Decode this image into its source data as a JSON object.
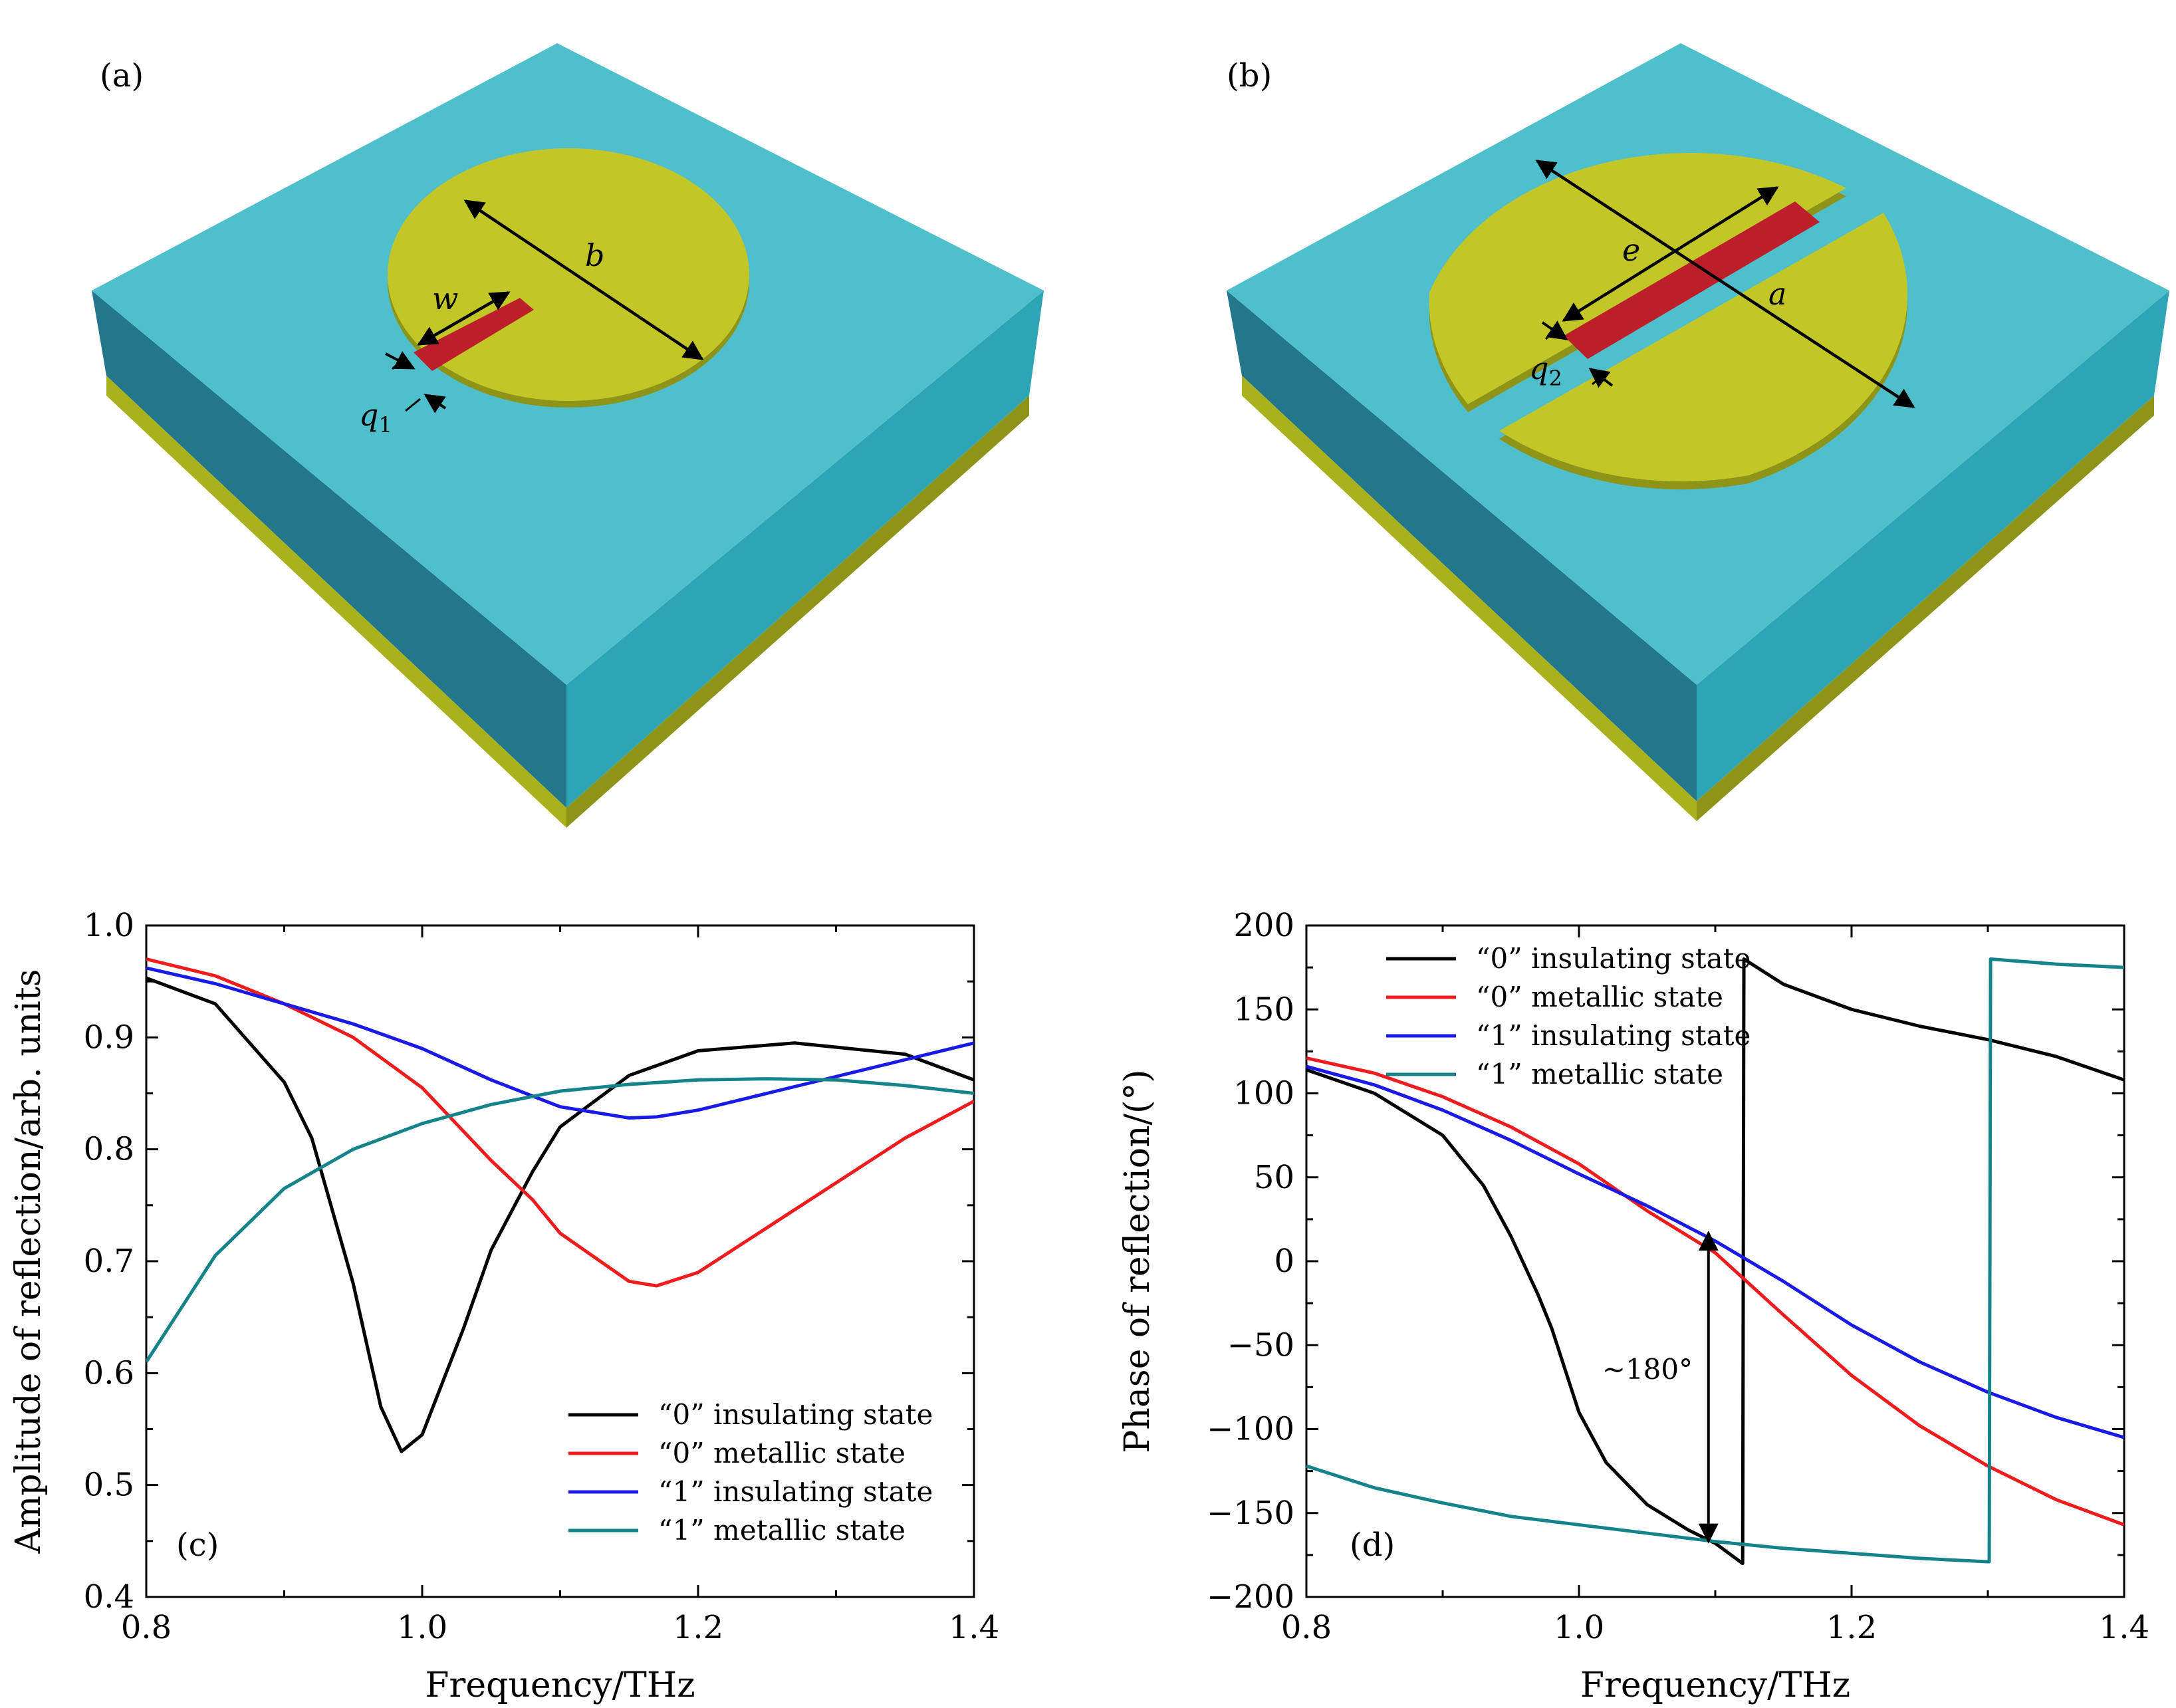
{
  "panels": {
    "a": {
      "label": "(a)",
      "dims": {
        "b": "b",
        "w": "w",
        "q1": "q",
        "q1_sub": "1"
      }
    },
    "b": {
      "label": "(b)",
      "dims": {
        "e": "e",
        "a": "a",
        "q2": "q",
        "q2_sub": "2"
      }
    }
  },
  "colors": {
    "substrate_top": "#4fbfcb",
    "substrate_left": "#23778a",
    "substrate_right": "#2ea5b5",
    "gold_layer": "#a9b21c",
    "gold_top": "#c2c727",
    "gold_edge": "#8d9418",
    "vo2_stripe": "#bd1f2a",
    "black": "#000000",
    "red": "#ee1c1c",
    "blue": "#1a1ae6",
    "teal": "#15848a"
  },
  "chart_data": [
    {
      "type": "line",
      "panel": "(c)",
      "xlabel": "Frequency/THz",
      "ylabel": "Amplitude of reflection/arb. units",
      "xlim": [
        0.8,
        1.4
      ],
      "ylim": [
        0.4,
        1.0
      ],
      "xticks": [
        "0.8",
        "1.0",
        "1.2",
        "1.4"
      ],
      "yticks": [
        "0.4",
        "0.5",
        "0.6",
        "0.7",
        "0.8",
        "0.9",
        "1.0"
      ],
      "legend_position": "bottom-right",
      "series": [
        {
          "name": "“0”  insulating state",
          "color": "#000000",
          "x": [
            0.8,
            0.85,
            0.9,
            0.92,
            0.95,
            0.97,
            0.985,
            1.0,
            1.03,
            1.05,
            1.08,
            1.1,
            1.15,
            1.2,
            1.27,
            1.35,
            1.4
          ],
          "y": [
            0.953,
            0.93,
            0.86,
            0.81,
            0.68,
            0.57,
            0.53,
            0.545,
            0.64,
            0.71,
            0.78,
            0.82,
            0.866,
            0.888,
            0.895,
            0.885,
            0.862
          ]
        },
        {
          "name": "“0”  metallic state",
          "color": "#ee1c1c",
          "x": [
            0.8,
            0.85,
            0.9,
            0.95,
            1.0,
            1.05,
            1.08,
            1.1,
            1.15,
            1.17,
            1.2,
            1.25,
            1.3,
            1.35,
            1.4
          ],
          "y": [
            0.97,
            0.955,
            0.93,
            0.9,
            0.855,
            0.79,
            0.755,
            0.725,
            0.682,
            0.678,
            0.69,
            0.73,
            0.77,
            0.81,
            0.843
          ]
        },
        {
          "name": "“1”  insulating state",
          "color": "#1a1ae6",
          "x": [
            0.8,
            0.85,
            0.9,
            0.95,
            1.0,
            1.05,
            1.1,
            1.15,
            1.17,
            1.2,
            1.25,
            1.3,
            1.35,
            1.4
          ],
          "y": [
            0.962,
            0.948,
            0.93,
            0.912,
            0.89,
            0.862,
            0.838,
            0.828,
            0.829,
            0.835,
            0.85,
            0.865,
            0.88,
            0.895
          ]
        },
        {
          "name": "“1”  metallic state",
          "color": "#15848a",
          "x": [
            0.8,
            0.85,
            0.9,
            0.95,
            1.0,
            1.05,
            1.1,
            1.15,
            1.2,
            1.25,
            1.3,
            1.35,
            1.4
          ],
          "y": [
            0.61,
            0.705,
            0.765,
            0.8,
            0.823,
            0.84,
            0.852,
            0.858,
            0.862,
            0.863,
            0.862,
            0.857,
            0.85
          ]
        }
      ]
    },
    {
      "type": "line",
      "panel": "(d)",
      "xlabel": "Frequency/THz",
      "ylabel": "Phase of reflection/(°)",
      "xlim": [
        0.8,
        1.4
      ],
      "ylim": [
        -200,
        200
      ],
      "xticks": [
        "0.8",
        "1.0",
        "1.2",
        "1.4"
      ],
      "yticks": [
        "−200",
        "−150",
        "−100",
        "−50",
        "0",
        "50",
        "100",
        "150",
        "200"
      ],
      "legend_position": "top-left",
      "annotation": "~180°",
      "annotation_arrow_x": 1.095,
      "annotation_arrow_y": [
        -167,
        17
      ],
      "series": [
        {
          "name": "“0”  insulating state",
          "color": "#000000",
          "x": [
            0.8,
            0.85,
            0.9,
            0.93,
            0.95,
            0.97,
            0.98,
            1.0,
            1.02,
            1.05,
            1.08,
            1.1,
            1.12,
            1.1201,
            1.121,
            1.15,
            1.2,
            1.25,
            1.3,
            1.35,
            1.4
          ],
          "y": [
            114,
            100,
            75,
            45,
            15,
            -20,
            -40,
            -90,
            -120,
            -145,
            -160,
            -168,
            -180,
            -180,
            180,
            165,
            150,
            140,
            132,
            122,
            108
          ]
        },
        {
          "name": "“0”  metallic state",
          "color": "#ee1c1c",
          "x": [
            0.8,
            0.85,
            0.9,
            0.95,
            1.0,
            1.05,
            1.1,
            1.15,
            1.2,
            1.25,
            1.3,
            1.35,
            1.4
          ],
          "y": [
            121,
            112,
            98,
            80,
            58,
            30,
            5,
            -32,
            -68,
            -98,
            -122,
            -142,
            -157
          ]
        },
        {
          "name": "“1”  insulating state",
          "color": "#1a1ae6",
          "x": [
            0.8,
            0.85,
            0.9,
            0.95,
            1.0,
            1.05,
            1.1,
            1.15,
            1.2,
            1.25,
            1.3,
            1.35,
            1.4
          ],
          "y": [
            116,
            105,
            90,
            72,
            52,
            33,
            12,
            -12,
            -38,
            -60,
            -78,
            -93,
            -105
          ]
        },
        {
          "name": "“1”  metallic state",
          "color": "#15848a",
          "x": [
            0.8,
            0.85,
            0.9,
            0.95,
            1.0,
            1.05,
            1.1,
            1.15,
            1.2,
            1.25,
            1.3,
            1.301,
            1.302,
            1.35,
            1.4
          ],
          "y": [
            -122,
            -135,
            -144,
            -152,
            -157,
            -162,
            -167,
            -171,
            -174,
            -177,
            -179,
            -179,
            180,
            177,
            175
          ]
        }
      ]
    }
  ]
}
